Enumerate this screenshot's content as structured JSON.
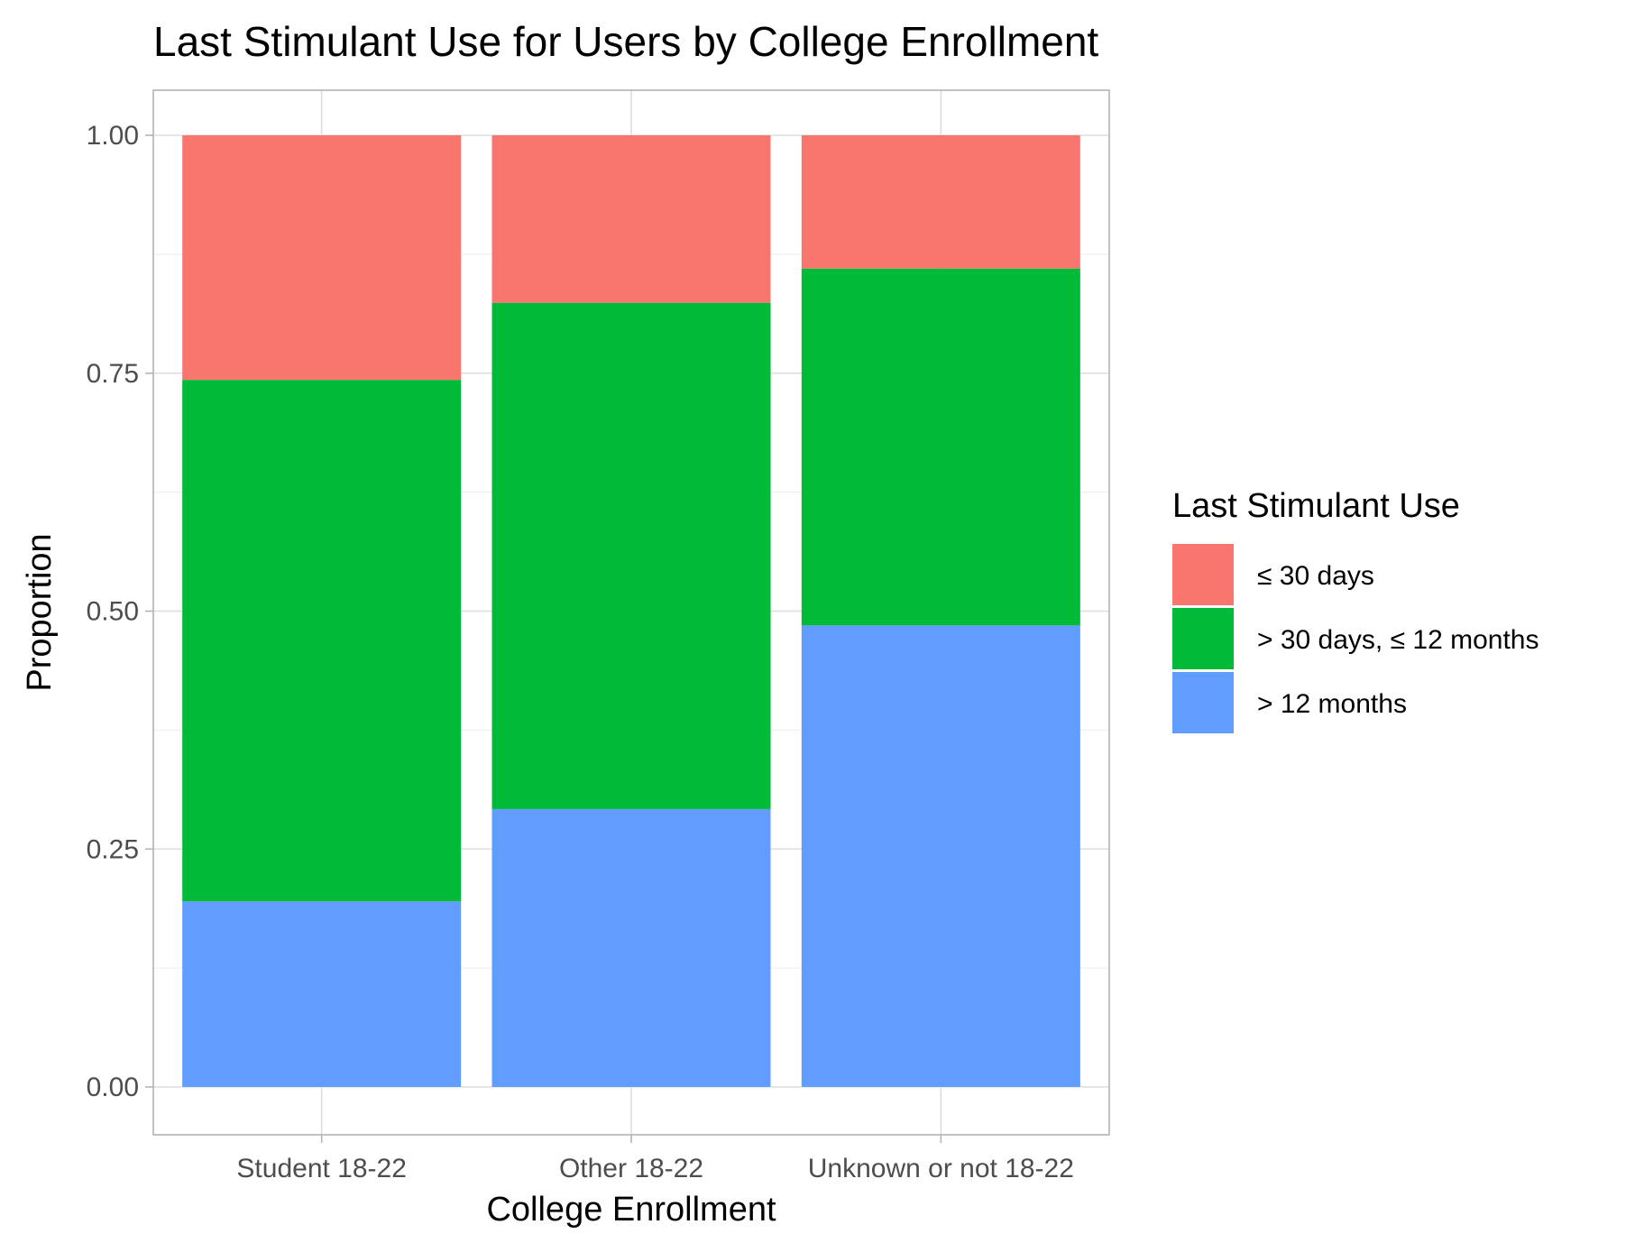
{
  "chart_data": {
    "type": "bar",
    "stacked": true,
    "title": "Last Stimulant Use for Users by College Enrollment",
    "xlabel": "College Enrollment",
    "ylabel": "Proportion",
    "categories": [
      "Student 18-22",
      "Other 18-22",
      "Unknown or not 18-22"
    ],
    "ylim": [
      0,
      1
    ],
    "yticks": [
      "0.00",
      "0.25",
      "0.50",
      "0.75",
      "1.00"
    ],
    "ytick_values": [
      0,
      0.25,
      0.5,
      0.75,
      1.0
    ],
    "grid": true,
    "legend": {
      "title": "Last Stimulant Use",
      "position": "right"
    },
    "series": [
      {
        "name": "> 12 months",
        "color": "#619CFF",
        "values": [
          0.195,
          0.292,
          0.485
        ]
      },
      {
        "name": "> 30 days, ≤ 12 months",
        "color": "#00BA38",
        "values": [
          0.548,
          0.532,
          0.375
        ]
      },
      {
        "name": "≤ 30 days",
        "color": "#F8766D",
        "values": [
          0.257,
          0.176,
          0.14
        ]
      }
    ],
    "legend_order": [
      "≤ 30 days",
      "> 30 days, ≤ 12 months",
      "> 12 months"
    ]
  }
}
